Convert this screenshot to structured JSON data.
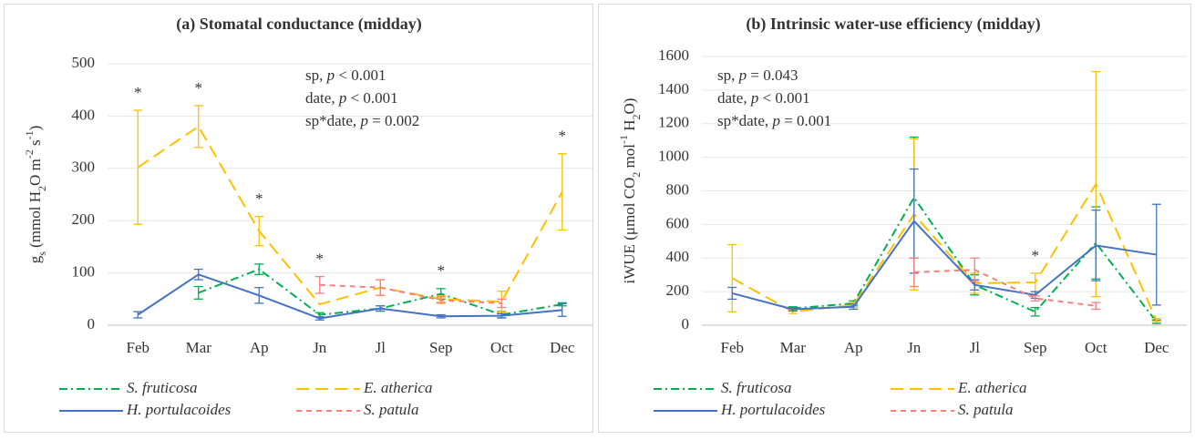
{
  "chart_data": [
    {
      "type": "line",
      "title": "(a) Stomatal conductance (midday)",
      "y_label_parts": [
        "g",
        "s",
        " (mmol H",
        "2",
        "O m",
        "-2",
        " s",
        "-1",
        ")"
      ],
      "categories": [
        "Feb",
        "Mar",
        "Ap",
        "Jn",
        "Jl",
        "Sep",
        "Oct",
        "Dec"
      ],
      "ylim": [
        0,
        500
      ],
      "yticks": [
        0,
        100,
        200,
        300,
        400,
        500
      ],
      "grid": true,
      "annotations": [
        "sp, p < 0.001",
        "date, p < 0.001",
        "sp*date, p = 0.002"
      ],
      "significance_labels": [
        "*",
        "*",
        "*",
        "*",
        null,
        "*",
        null,
        "*"
      ],
      "series": [
        {
          "name": "S. fruticosa",
          "color": "#00b050",
          "linestyle": "dashdot",
          "values": [
            null,
            62,
            107,
            20,
            32,
            60,
            20,
            40
          ],
          "errors": [
            null,
            12,
            10,
            4,
            5,
            10,
            6,
            3
          ]
        },
        {
          "name": "E. atherica",
          "color": "#ffc000",
          "linestyle": "longdash",
          "values": [
            302,
            380,
            180,
            40,
            72,
            50,
            45,
            255
          ],
          "errors": [
            109,
            40,
            28,
            null,
            15,
            6,
            20,
            73
          ]
        },
        {
          "name": "H. portulacoides",
          "color": "#4472c4",
          "linestyle": "solid",
          "values": [
            20,
            97,
            57,
            13,
            32,
            17,
            18,
            29
          ],
          "errors": [
            6,
            10,
            15,
            3,
            5,
            3,
            4,
            12
          ]
        },
        {
          "name": "S. patula",
          "color": "#ff7c80",
          "linestyle": "dash",
          "values": [
            null,
            null,
            null,
            77,
            72,
            48,
            42,
            null
          ],
          "errors": [
            null,
            null,
            null,
            16,
            15,
            6,
            8,
            null
          ]
        }
      ]
    },
    {
      "type": "line",
      "title": "(b) Intrinsic water-use efficiency (midday)",
      "y_label_parts": [
        "iWUE (μmol CO",
        "2",
        " mol",
        "-1",
        " H",
        "2",
        "O)"
      ],
      "categories": [
        "Feb",
        "Mar",
        "Ap",
        "Jn",
        "Jl",
        "Sep",
        "Oct",
        "Dec"
      ],
      "ylim": [
        0,
        1600
      ],
      "yticks": [
        0,
        200,
        400,
        600,
        800,
        1000,
        1200,
        1400,
        1600
      ],
      "grid": true,
      "annotations": [
        "sp, p = 0.043",
        "date, p < 0.001",
        "sp*date, p = 0.001"
      ],
      "significance_labels": [
        null,
        null,
        null,
        null,
        null,
        "*",
        null,
        null
      ],
      "series": [
        {
          "name": "S. fruticosa",
          "color": "#00b050",
          "linestyle": "dashdot",
          "values": [
            null,
            100,
            130,
            760,
            240,
            80,
            490,
            20
          ],
          "errors": [
            null,
            10,
            15,
            360,
            60,
            25,
            215,
            10
          ]
        },
        {
          "name": "E. atherica",
          "color": "#ffc000",
          "linestyle": "longdash",
          "values": [
            280,
            80,
            120,
            660,
            250,
            255,
            840,
            30
          ],
          "errors": [
            200,
            10,
            15,
            450,
            60,
            55,
            670,
            10
          ]
        },
        {
          "name": "H. portulacoides",
          "color": "#4472c4",
          "linestyle": "solid",
          "values": [
            190,
            95,
            110,
            620,
            240,
            180,
            475,
            420
          ],
          "errors": [
            35,
            10,
            15,
            310,
            30,
            20,
            210,
            300
          ]
        },
        {
          "name": "S. patula",
          "color": "#ff7c80",
          "linestyle": "dash",
          "values": [
            null,
            null,
            null,
            315,
            330,
            160,
            115,
            null
          ],
          "errors": [
            null,
            null,
            null,
            85,
            70,
            15,
            20,
            null
          ]
        }
      ]
    }
  ]
}
